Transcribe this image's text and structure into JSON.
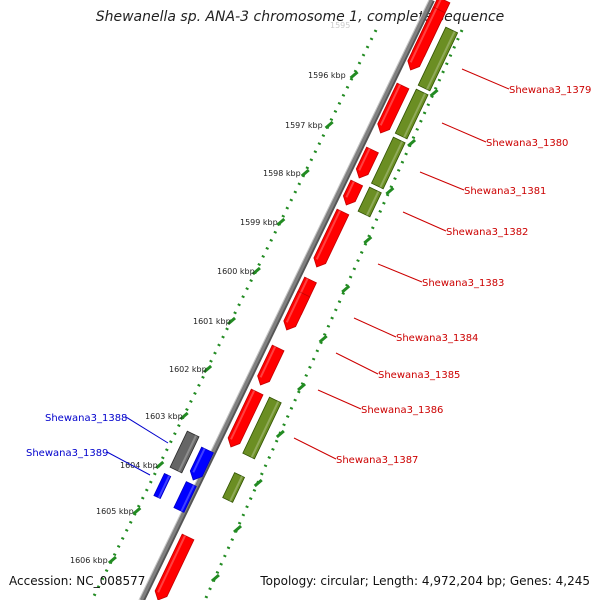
{
  "title": "Shewanella sp. ANA-3 chromosome 1, complete sequence",
  "footer": {
    "accession": "Accession: NC_008577",
    "topology": "Topology: circular; Length: 4,972,204 bp; Genes: 4,245"
  },
  "colors": {
    "forward_gene": "#ff0000",
    "reverse_gene": "#6b8e23",
    "other_gene": "#0000ff",
    "pseudo_gene": "#666666",
    "backbone": "#808080",
    "tick_marks": "#228b22",
    "right_label": "#cc0000",
    "left_label": "#0000cc"
  },
  "ticks": [
    {
      "label": "1596 kbp"
    },
    {
      "label": "1597 kbp"
    },
    {
      "label": "1598 kbp"
    },
    {
      "label": "1599 kbp"
    },
    {
      "label": "1600 kbp"
    },
    {
      "label": "1601 kbp"
    },
    {
      "label": "1602 kbp"
    },
    {
      "label": "1603 kbp"
    },
    {
      "label": "1604 kbp"
    },
    {
      "label": "1605 kbp"
    },
    {
      "label": "1606 kbp"
    }
  ],
  "right_labels": [
    {
      "text": "Shewana3_1379"
    },
    {
      "text": "Shewana3_1380"
    },
    {
      "text": "Shewana3_1381"
    },
    {
      "text": "Shewana3_1382"
    },
    {
      "text": "Shewana3_1383"
    },
    {
      "text": "Shewana3_1384"
    },
    {
      "text": "Shewana3_1385"
    },
    {
      "text": "Shewana3_1386"
    },
    {
      "text": "Shewana3_1387"
    }
  ],
  "left_labels": [
    {
      "text": "Shewana3_1388"
    },
    {
      "text": "Shewana3_1389"
    }
  ]
}
